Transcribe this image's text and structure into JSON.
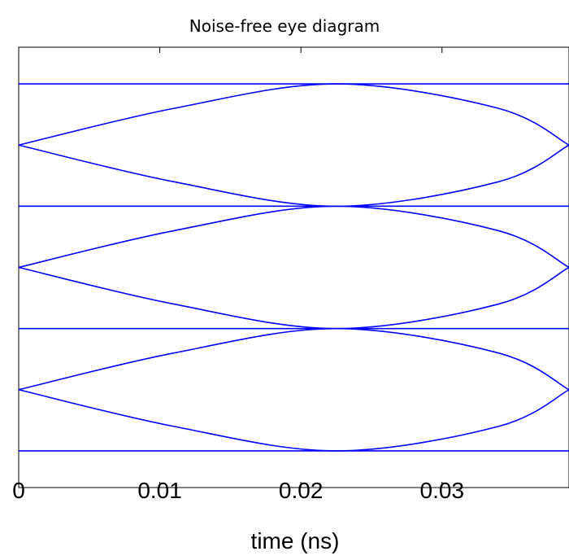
{
  "chart_data": {
    "type": "line",
    "title": "Noise-free eye diagram",
    "xlabel": "time (ns)",
    "ylabel": "",
    "xlim": [
      0,
      0.039
    ],
    "ylim": [
      -3.6,
      3.6
    ],
    "xticks": [
      0,
      0.01,
      0.02,
      0.03
    ],
    "xtick_labels": [
      "0",
      "0.01",
      "0.02",
      "0.03"
    ],
    "levels": [
      -3,
      -1,
      1,
      3
    ],
    "grid": false,
    "line_color": "#0000ff",
    "series": [
      {
        "x": [
          0,
          0.011,
          0.0225,
          0.034,
          0.039
        ],
        "y": [
          -2,
          -2.6,
          -3,
          -2.6,
          -2
        ]
      },
      {
        "x": [
          0,
          0.011,
          0.0225,
          0.034,
          0.039
        ],
        "y": [
          -2,
          -1.4,
          -1,
          -1.4,
          -2
        ]
      },
      {
        "x": [
          0,
          0.011,
          0.0225,
          0.034,
          0.039
        ],
        "y": [
          0,
          0.6,
          1,
          0.6,
          0
        ]
      },
      {
        "x": [
          0,
          0.011,
          0.0225,
          0.034,
          0.039
        ],
        "y": [
          0,
          -0.6,
          -1,
          -0.6,
          0
        ]
      },
      {
        "x": [
          0,
          0.011,
          0.0225,
          0.034,
          0.039
        ],
        "y": [
          2,
          1.4,
          1,
          1.4,
          2
        ]
      },
      {
        "x": [
          0,
          0.011,
          0.0225,
          0.034,
          0.039
        ],
        "y": [
          2,
          2.6,
          3,
          2.6,
          2
        ]
      },
      {
        "x": [
          0,
          0.039
        ],
        "y": [
          3,
          3
        ]
      },
      {
        "x": [
          0,
          0.039
        ],
        "y": [
          1,
          1
        ]
      },
      {
        "x": [
          0,
          0.039
        ],
        "y": [
          -1,
          -1
        ]
      },
      {
        "x": [
          0,
          0.039
        ],
        "y": [
          -3,
          -3
        ]
      }
    ]
  }
}
